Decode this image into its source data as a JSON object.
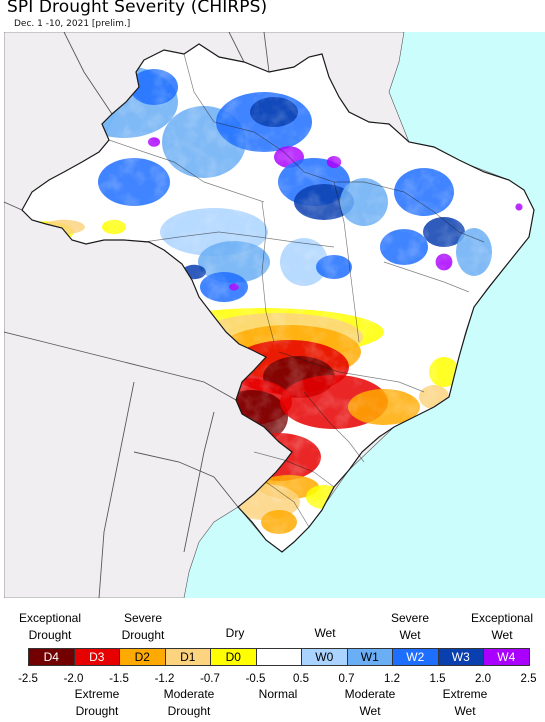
{
  "title": "SPI Drought Severity (CHIRPS)",
  "subtitle": "Dec. 1 -10, 2021 [prelim.]",
  "colors": {
    "ocean": "#ccfdfd",
    "land_outside": "#f0eef0",
    "border": "#1a1a1a"
  },
  "legend": {
    "top_labels": [
      {
        "text": "Exceptional\nDrought"
      },
      {
        "text": "Severe\nDrought"
      },
      {
        "text": "Dry"
      },
      {
        "text": "Wet"
      },
      {
        "text": "Severe\nWet"
      },
      {
        "text": "Exceptional\nWet"
      }
    ],
    "bottom_labels": [
      {
        "text": "Extreme\nDrought"
      },
      {
        "text": "Moderate\nDrought"
      },
      {
        "text": "Normal"
      },
      {
        "text": "Moderate\nWet"
      },
      {
        "text": "Extreme\nWet"
      }
    ],
    "classes": [
      {
        "code": "D4",
        "color": "#730000",
        "text_color": "#ffffff"
      },
      {
        "code": "D3",
        "color": "#e60000",
        "text_color": "#ffffff"
      },
      {
        "code": "D2",
        "color": "#ffaa00",
        "text_color": "#000000"
      },
      {
        "code": "D1",
        "color": "#fcd37f",
        "text_color": "#000000"
      },
      {
        "code": "D0",
        "color": "#ffff00",
        "text_color": "#000000"
      },
      {
        "code": "",
        "color": "#ffffff",
        "text_color": "#000000"
      },
      {
        "code": "W0",
        "color": "#aad4ff",
        "text_color": "#000000"
      },
      {
        "code": "W1",
        "color": "#6aaef5",
        "text_color": "#000000"
      },
      {
        "code": "W2",
        "color": "#1e6eff",
        "text_color": "#ffffff"
      },
      {
        "code": "W3",
        "color": "#0a3fb0",
        "text_color": "#ffffff"
      },
      {
        "code": "W4",
        "color": "#aa00ff",
        "text_color": "#ffffff"
      }
    ],
    "ticks": [
      "-2.5",
      "-2.0",
      "-1.5",
      "-1.2",
      "-0.7",
      "-0.5",
      "0.5",
      "0.7",
      "1.2",
      "1.5",
      "2.0",
      "2.5"
    ]
  }
}
